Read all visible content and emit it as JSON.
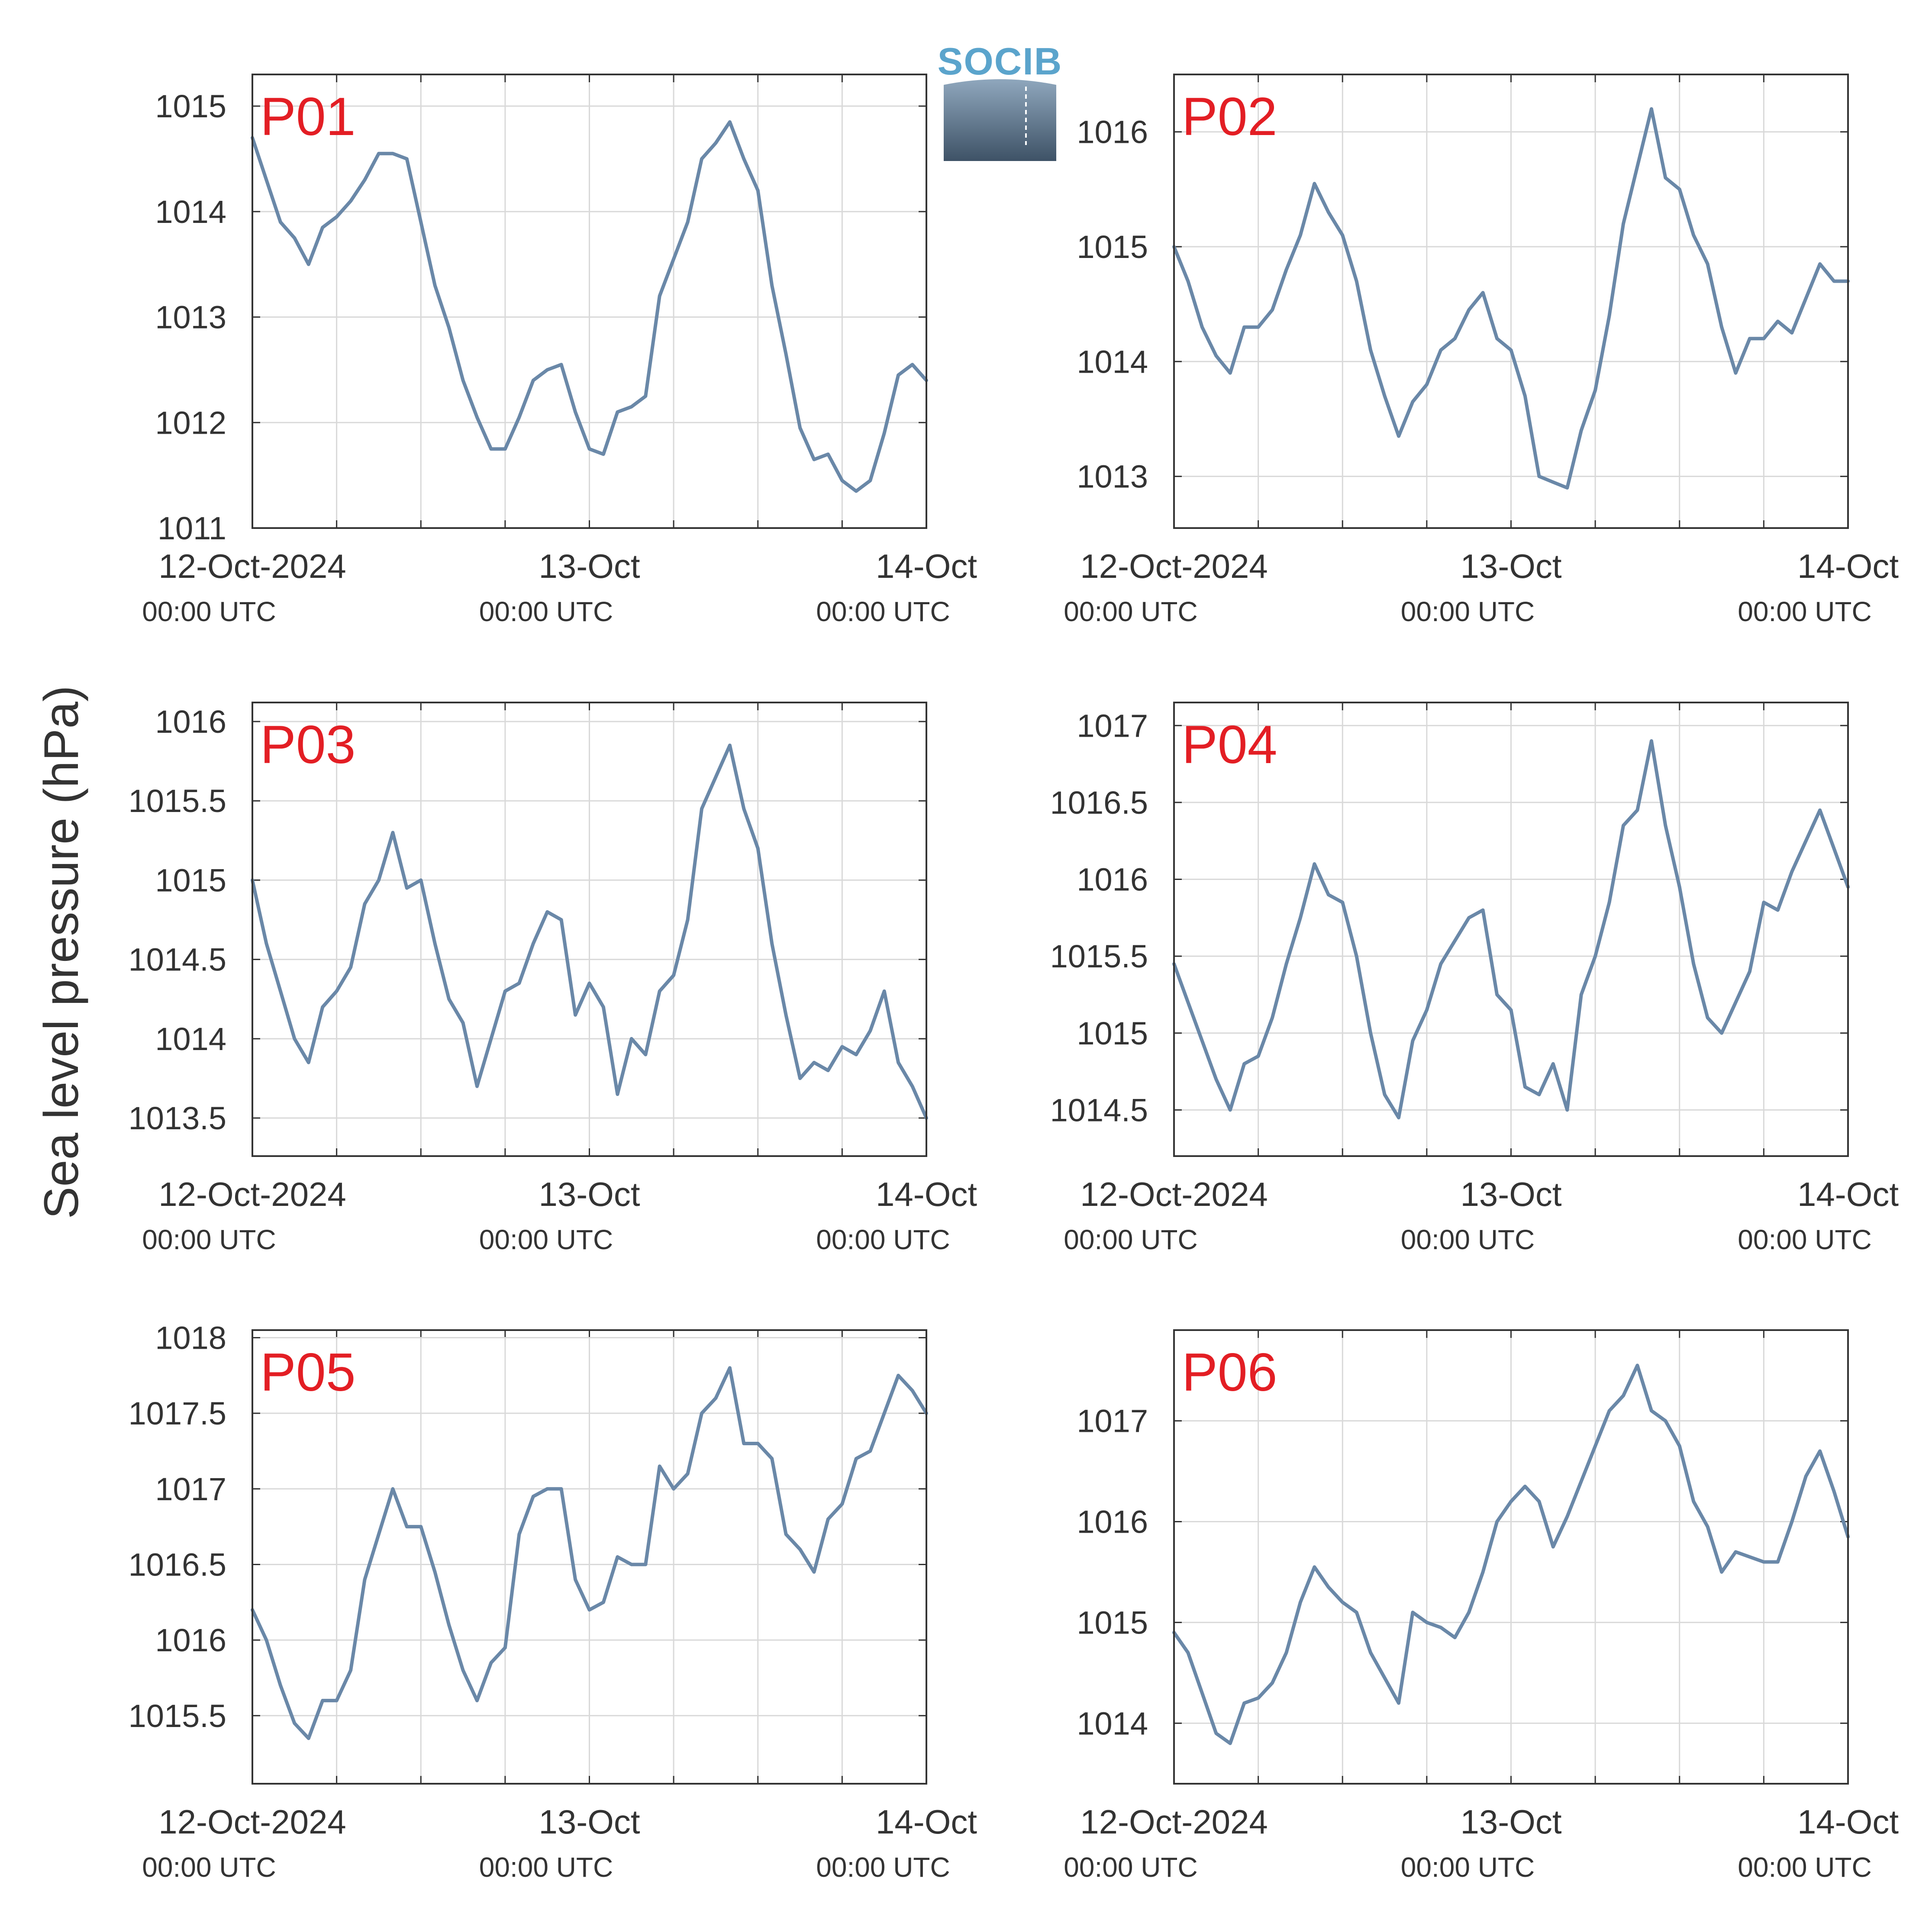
{
  "ylabel": "Sea level pressure (hPa)",
  "logo": {
    "text": "SOCIB"
  },
  "colors": {
    "line": "#6a88a8",
    "panel_label": "#e31e24",
    "grid": "#d9d9d9",
    "axis": "#333333",
    "text": "#333333",
    "logo_text": "#5ba4cc"
  },
  "x_axis": {
    "range": [
      "2024-10-12T00:00",
      "2024-10-14T00:00"
    ],
    "tick_labels": [
      {
        "date": "12-Oct-2024",
        "time": "00:00 UTC"
      },
      {
        "date": "13-Oct",
        "time": "00:00 UTC"
      },
      {
        "date": "14-Oct",
        "time": "00:00 UTC"
      }
    ]
  },
  "chart_data": [
    {
      "type": "line",
      "name": "P01",
      "title": "P01",
      "ylim": [
        1011,
        1015.3
      ],
      "yticks": [
        1011,
        1012,
        1013,
        1014,
        1015
      ],
      "x": [
        "2024-10-12T00:00",
        "2024-10-12T01:00",
        "2024-10-12T02:00",
        "2024-10-12T03:00",
        "2024-10-12T04:00",
        "2024-10-12T05:00",
        "2024-10-12T06:00",
        "2024-10-12T07:00",
        "2024-10-12T08:00",
        "2024-10-12T09:00",
        "2024-10-12T10:00",
        "2024-10-12T11:00",
        "2024-10-12T12:00",
        "2024-10-12T13:00",
        "2024-10-12T14:00",
        "2024-10-12T15:00",
        "2024-10-12T16:00",
        "2024-10-12T17:00",
        "2024-10-12T18:00",
        "2024-10-12T19:00",
        "2024-10-12T20:00",
        "2024-10-12T21:00",
        "2024-10-12T22:00",
        "2024-10-12T23:00",
        "2024-10-13T00:00",
        "2024-10-13T01:00",
        "2024-10-13T02:00",
        "2024-10-13T03:00",
        "2024-10-13T04:00",
        "2024-10-13T05:00",
        "2024-10-13T06:00",
        "2024-10-13T07:00",
        "2024-10-13T08:00",
        "2024-10-13T09:00",
        "2024-10-13T10:00",
        "2024-10-13T11:00",
        "2024-10-13T12:00",
        "2024-10-13T13:00",
        "2024-10-13T14:00",
        "2024-10-13T15:00",
        "2024-10-13T16:00",
        "2024-10-13T17:00",
        "2024-10-13T18:00",
        "2024-10-13T19:00",
        "2024-10-13T20:00",
        "2024-10-13T21:00",
        "2024-10-13T22:00",
        "2024-10-13T23:00",
        "2024-10-14T00:00"
      ],
      "values": [
        1014.7,
        1014.3,
        1013.9,
        1013.75,
        1013.5,
        1013.85,
        1013.95,
        1014.1,
        1014.3,
        1014.55,
        1014.55,
        1014.5,
        1013.9,
        1013.3,
        1012.9,
        1012.4,
        1012.05,
        1011.75,
        1011.75,
        1012.05,
        1012.4,
        1012.5,
        1012.55,
        1012.1,
        1011.75,
        1011.7,
        1012.1,
        1012.15,
        1012.25,
        1013.2,
        1013.55,
        1013.9,
        1014.5,
        1014.65,
        1014.85,
        1014.5,
        1014.2,
        1013.3,
        1012.65,
        1011.95,
        1011.65,
        1011.7,
        1011.45,
        1011.35,
        1011.45,
        1011.9,
        1012.45,
        1012.55,
        1012.4
      ]
    },
    {
      "type": "line",
      "name": "P02",
      "title": "P02",
      "ylim": [
        1012.55,
        1016.5
      ],
      "yticks": [
        1013,
        1014,
        1015,
        1016
      ],
      "x": [
        "2024-10-12T00:00",
        "2024-10-12T01:00",
        "2024-10-12T02:00",
        "2024-10-12T03:00",
        "2024-10-12T04:00",
        "2024-10-12T05:00",
        "2024-10-12T06:00",
        "2024-10-12T07:00",
        "2024-10-12T08:00",
        "2024-10-12T09:00",
        "2024-10-12T10:00",
        "2024-10-12T11:00",
        "2024-10-12T12:00",
        "2024-10-12T13:00",
        "2024-10-12T14:00",
        "2024-10-12T15:00",
        "2024-10-12T16:00",
        "2024-10-12T17:00",
        "2024-10-12T18:00",
        "2024-10-12T19:00",
        "2024-10-12T20:00",
        "2024-10-12T21:00",
        "2024-10-12T22:00",
        "2024-10-12T23:00",
        "2024-10-13T00:00",
        "2024-10-13T01:00",
        "2024-10-13T02:00",
        "2024-10-13T03:00",
        "2024-10-13T04:00",
        "2024-10-13T05:00",
        "2024-10-13T06:00",
        "2024-10-13T07:00",
        "2024-10-13T08:00",
        "2024-10-13T09:00",
        "2024-10-13T10:00",
        "2024-10-13T11:00",
        "2024-10-13T12:00",
        "2024-10-13T13:00",
        "2024-10-13T14:00",
        "2024-10-13T15:00",
        "2024-10-13T16:00",
        "2024-10-13T17:00",
        "2024-10-13T18:00",
        "2024-10-13T19:00",
        "2024-10-13T20:00",
        "2024-10-13T21:00",
        "2024-10-13T22:00",
        "2024-10-13T23:00",
        "2024-10-14T00:00"
      ],
      "values": [
        1015.0,
        1014.7,
        1014.3,
        1014.05,
        1013.9,
        1014.3,
        1014.3,
        1014.45,
        1014.8,
        1015.1,
        1015.55,
        1015.3,
        1015.1,
        1014.7,
        1014.1,
        1013.7,
        1013.35,
        1013.65,
        1013.8,
        1014.1,
        1014.2,
        1014.45,
        1014.6,
        1014.2,
        1014.1,
        1013.7,
        1013.0,
        1012.95,
        1012.9,
        1013.4,
        1013.75,
        1014.4,
        1015.2,
        1015.7,
        1016.2,
        1015.6,
        1015.5,
        1015.1,
        1014.85,
        1014.3,
        1013.9,
        1014.2,
        1014.2,
        1014.35,
        1014.25,
        1014.55,
        1014.85,
        1014.7,
        1014.7
      ]
    },
    {
      "type": "line",
      "name": "P03",
      "title": "P03",
      "ylim": [
        1013.26,
        1016.12
      ],
      "yticks": [
        1013.5,
        1014,
        1014.5,
        1015,
        1015.5,
        1016
      ],
      "x": [
        "2024-10-12T00:00",
        "2024-10-12T01:00",
        "2024-10-12T02:00",
        "2024-10-12T03:00",
        "2024-10-12T04:00",
        "2024-10-12T05:00",
        "2024-10-12T06:00",
        "2024-10-12T07:00",
        "2024-10-12T08:00",
        "2024-10-12T09:00",
        "2024-10-12T10:00",
        "2024-10-12T11:00",
        "2024-10-12T12:00",
        "2024-10-12T13:00",
        "2024-10-12T14:00",
        "2024-10-12T15:00",
        "2024-10-12T16:00",
        "2024-10-12T17:00",
        "2024-10-12T18:00",
        "2024-10-12T19:00",
        "2024-10-12T20:00",
        "2024-10-12T21:00",
        "2024-10-12T22:00",
        "2024-10-12T23:00",
        "2024-10-13T00:00",
        "2024-10-13T01:00",
        "2024-10-13T02:00",
        "2024-10-13T03:00",
        "2024-10-13T04:00",
        "2024-10-13T05:00",
        "2024-10-13T06:00",
        "2024-10-13T07:00",
        "2024-10-13T08:00",
        "2024-10-13T09:00",
        "2024-10-13T10:00",
        "2024-10-13T11:00",
        "2024-10-13T12:00",
        "2024-10-13T13:00",
        "2024-10-13T14:00",
        "2024-10-13T15:00",
        "2024-10-13T16:00",
        "2024-10-13T17:00",
        "2024-10-13T18:00",
        "2024-10-13T19:00",
        "2024-10-13T20:00",
        "2024-10-13T21:00",
        "2024-10-13T22:00",
        "2024-10-13T23:00",
        "2024-10-14T00:00"
      ],
      "values": [
        1015.0,
        1014.6,
        1014.3,
        1014.0,
        1013.85,
        1014.2,
        1014.3,
        1014.45,
        1014.85,
        1015.0,
        1015.3,
        1014.95,
        1015.0,
        1014.6,
        1014.25,
        1014.1,
        1013.7,
        1014.0,
        1014.3,
        1014.35,
        1014.6,
        1014.8,
        1014.75,
        1014.15,
        1014.35,
        1014.2,
        1013.65,
        1014.0,
        1013.9,
        1014.3,
        1014.4,
        1014.75,
        1015.45,
        1015.65,
        1015.85,
        1015.45,
        1015.2,
        1014.6,
        1014.15,
        1013.75,
        1013.85,
        1013.8,
        1013.95,
        1013.9,
        1014.05,
        1014.3,
        1013.85,
        1013.7,
        1013.5
      ]
    },
    {
      "type": "line",
      "name": "P04",
      "title": "P04",
      "ylim": [
        1014.2,
        1017.15
      ],
      "yticks": [
        1014.5,
        1015,
        1015.5,
        1016,
        1016.5,
        1017
      ],
      "x": [
        "2024-10-12T00:00",
        "2024-10-12T01:00",
        "2024-10-12T02:00",
        "2024-10-12T03:00",
        "2024-10-12T04:00",
        "2024-10-12T05:00",
        "2024-10-12T06:00",
        "2024-10-12T07:00",
        "2024-10-12T08:00",
        "2024-10-12T09:00",
        "2024-10-12T10:00",
        "2024-10-12T11:00",
        "2024-10-12T12:00",
        "2024-10-12T13:00",
        "2024-10-12T14:00",
        "2024-10-12T15:00",
        "2024-10-12T16:00",
        "2024-10-12T17:00",
        "2024-10-12T18:00",
        "2024-10-12T19:00",
        "2024-10-12T20:00",
        "2024-10-12T21:00",
        "2024-10-12T22:00",
        "2024-10-12T23:00",
        "2024-10-13T00:00",
        "2024-10-13T01:00",
        "2024-10-13T02:00",
        "2024-10-13T03:00",
        "2024-10-13T04:00",
        "2024-10-13T05:00",
        "2024-10-13T06:00",
        "2024-10-13T07:00",
        "2024-10-13T08:00",
        "2024-10-13T09:00",
        "2024-10-13T10:00",
        "2024-10-13T11:00",
        "2024-10-13T12:00",
        "2024-10-13T13:00",
        "2024-10-13T14:00",
        "2024-10-13T15:00",
        "2024-10-13T16:00",
        "2024-10-13T17:00",
        "2024-10-13T18:00",
        "2024-10-13T19:00",
        "2024-10-13T20:00",
        "2024-10-13T21:00",
        "2024-10-13T22:00",
        "2024-10-13T23:00",
        "2024-10-14T00:00"
      ],
      "values": [
        1015.45,
        1015.2,
        1014.95,
        1014.7,
        1014.5,
        1014.8,
        1014.85,
        1015.1,
        1015.45,
        1015.75,
        1016.1,
        1015.9,
        1015.85,
        1015.5,
        1015.0,
        1014.6,
        1014.45,
        1014.95,
        1015.15,
        1015.45,
        1015.6,
        1015.75,
        1015.8,
        1015.25,
        1015.15,
        1014.65,
        1014.6,
        1014.8,
        1014.5,
        1015.25,
        1015.5,
        1015.85,
        1016.35,
        1016.45,
        1016.9,
        1016.35,
        1015.95,
        1015.45,
        1015.1,
        1015.0,
        1015.2,
        1015.4,
        1015.85,
        1015.8,
        1016.05,
        1016.25,
        1016.45,
        1016.2,
        1015.95
      ]
    },
    {
      "type": "line",
      "name": "P05",
      "title": "P05",
      "ylim": [
        1015.05,
        1018.05
      ],
      "yticks": [
        1015.5,
        1016,
        1016.5,
        1017,
        1017.5,
        1018
      ],
      "x": [
        "2024-10-12T00:00",
        "2024-10-12T01:00",
        "2024-10-12T02:00",
        "2024-10-12T03:00",
        "2024-10-12T04:00",
        "2024-10-12T05:00",
        "2024-10-12T06:00",
        "2024-10-12T07:00",
        "2024-10-12T08:00",
        "2024-10-12T09:00",
        "2024-10-12T10:00",
        "2024-10-12T11:00",
        "2024-10-12T12:00",
        "2024-10-12T13:00",
        "2024-10-12T14:00",
        "2024-10-12T15:00",
        "2024-10-12T16:00",
        "2024-10-12T17:00",
        "2024-10-12T18:00",
        "2024-10-12T19:00",
        "2024-10-12T20:00",
        "2024-10-12T21:00",
        "2024-10-12T22:00",
        "2024-10-12T23:00",
        "2024-10-13T00:00",
        "2024-10-13T01:00",
        "2024-10-13T02:00",
        "2024-10-13T03:00",
        "2024-10-13T04:00",
        "2024-10-13T05:00",
        "2024-10-13T06:00",
        "2024-10-13T07:00",
        "2024-10-13T08:00",
        "2024-10-13T09:00",
        "2024-10-13T10:00",
        "2024-10-13T11:00",
        "2024-10-13T12:00",
        "2024-10-13T13:00",
        "2024-10-13T14:00",
        "2024-10-13T15:00",
        "2024-10-13T16:00",
        "2024-10-13T17:00",
        "2024-10-13T18:00",
        "2024-10-13T19:00",
        "2024-10-13T20:00",
        "2024-10-13T21:00",
        "2024-10-13T22:00",
        "2024-10-13T23:00",
        "2024-10-14T00:00"
      ],
      "values": [
        1016.2,
        1016.0,
        1015.7,
        1015.45,
        1015.35,
        1015.6,
        1015.6,
        1015.8,
        1016.4,
        1016.7,
        1017.0,
        1016.75,
        1016.75,
        1016.45,
        1016.1,
        1015.8,
        1015.6,
        1015.85,
        1015.95,
        1016.7,
        1016.95,
        1017.0,
        1017.0,
        1016.4,
        1016.2,
        1016.25,
        1016.55,
        1016.5,
        1016.5,
        1017.15,
        1017.0,
        1017.1,
        1017.5,
        1017.6,
        1017.8,
        1017.3,
        1017.3,
        1017.2,
        1016.7,
        1016.6,
        1016.45,
        1016.8,
        1016.9,
        1017.2,
        1017.25,
        1017.5,
        1017.75,
        1017.65,
        1017.5
      ]
    },
    {
      "type": "line",
      "name": "P06",
      "title": "P06",
      "ylim": [
        1013.4,
        1017.9
      ],
      "yticks": [
        1014,
        1015,
        1016,
        1017
      ],
      "x": [
        "2024-10-12T00:00",
        "2024-10-12T01:00",
        "2024-10-12T02:00",
        "2024-10-12T03:00",
        "2024-10-12T04:00",
        "2024-10-12T05:00",
        "2024-10-12T06:00",
        "2024-10-12T07:00",
        "2024-10-12T08:00",
        "2024-10-12T09:00",
        "2024-10-12T10:00",
        "2024-10-12T11:00",
        "2024-10-12T12:00",
        "2024-10-12T13:00",
        "2024-10-12T14:00",
        "2024-10-12T15:00",
        "2024-10-12T16:00",
        "2024-10-12T17:00",
        "2024-10-12T18:00",
        "2024-10-12T19:00",
        "2024-10-12T20:00",
        "2024-10-12T21:00",
        "2024-10-12T22:00",
        "2024-10-12T23:00",
        "2024-10-13T00:00",
        "2024-10-13T01:00",
        "2024-10-13T02:00",
        "2024-10-13T03:00",
        "2024-10-13T04:00",
        "2024-10-13T05:00",
        "2024-10-13T06:00",
        "2024-10-13T07:00",
        "2024-10-13T08:00",
        "2024-10-13T09:00",
        "2024-10-13T10:00",
        "2024-10-13T11:00",
        "2024-10-13T12:00",
        "2024-10-13T13:00",
        "2024-10-13T14:00",
        "2024-10-13T15:00",
        "2024-10-13T16:00",
        "2024-10-13T17:00",
        "2024-10-13T18:00",
        "2024-10-13T19:00",
        "2024-10-13T20:00",
        "2024-10-13T21:00",
        "2024-10-13T22:00",
        "2024-10-13T23:00",
        "2024-10-14T00:00"
      ],
      "values": [
        1014.9,
        1014.7,
        1014.3,
        1013.9,
        1013.8,
        1014.2,
        1014.25,
        1014.4,
        1014.7,
        1015.2,
        1015.55,
        1015.35,
        1015.2,
        1015.1,
        1014.7,
        1014.45,
        1014.2,
        1015.1,
        1015.0,
        1014.95,
        1014.85,
        1015.1,
        1015.5,
        1016.0,
        1016.2,
        1016.35,
        1016.2,
        1015.75,
        1016.05,
        1016.4,
        1016.75,
        1017.1,
        1017.25,
        1017.55,
        1017.1,
        1017.0,
        1016.75,
        1016.2,
        1015.95,
        1015.5,
        1015.7,
        1015.65,
        1015.6,
        1015.6,
        1016.0,
        1016.45,
        1016.7,
        1016.3,
        1015.85
      ]
    }
  ]
}
